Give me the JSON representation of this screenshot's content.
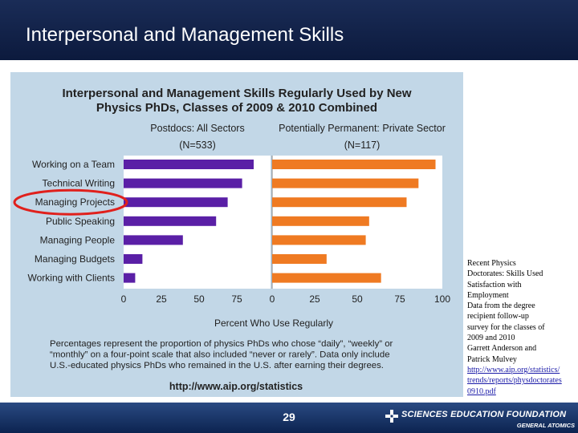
{
  "header": {
    "title": "Interpersonal and Management Skills"
  },
  "chart_data": {
    "type": "bar",
    "orientation": "horizontal",
    "title": "Interpersonal and Management Skills Regularly Used by New Physics PhDs, Classes of 2009 & 2010 Combined",
    "title_lines": [
      "Interpersonal and Management Skills Regularly Used by New",
      "Physics PhDs, Classes of 2009 & 2010 Combined"
    ],
    "categories": [
      "Working on a Team",
      "Technical Writing",
      "Managing Projects",
      "Public Speaking",
      "Managing People",
      "Managing Budgets",
      "Working with Clients"
    ],
    "highlighted_category": "Managing Projects",
    "series": [
      {
        "name": "Postdocs: All Sectors",
        "n_label": "(N=533)",
        "color": "#5a1fa6",
        "values": [
          90,
          82,
          72,
          64,
          41,
          13,
          8
        ]
      },
      {
        "name": "Potentially Permanent: Private Sector",
        "n_label": "(N=117)",
        "color": "#ef7a22",
        "values": [
          96,
          86,
          79,
          57,
          55,
          32,
          64
        ]
      }
    ],
    "ticks_left": [
      "0",
      "25",
      "50",
      "75"
    ],
    "ticks_right": [
      "0",
      "25",
      "50",
      "75",
      "100"
    ],
    "xlim": [
      0,
      100
    ],
    "xlabel": "Percent Who Use Regularly",
    "note_lines": [
      "Percentages represent the proportion of physics PhDs who chose “daily”, “weekly” or",
      "“monthly” on a four-point scale that also included “never or rarely”.  Data only include",
      "U.S.-educated physics PhDs who remained in the U.S. after earning their degrees."
    ],
    "url": "http://www.aip.org/statistics"
  },
  "side_note": {
    "lines": [
      "Recent Physics",
      "Doctorates:  Skills Used",
      "Satisfaction with",
      "Employment",
      "Data from the degree",
      "recipient follow-up",
      "survey for the classes of",
      "2009 and 2010",
      "Garrett Anderson and",
      "Patrick Mulvey"
    ],
    "link": "http://www.aip.org/statistics/trends/reports/physdoctorates0910.pdf"
  },
  "footer": {
    "page_number": "29",
    "logo_text": "SCIENCES EDUCATION FOUNDATION",
    "logo_subtext": "GENERAL ATOMICS"
  },
  "colors": {
    "header_bg": "#13234b",
    "chart_bg": "#c2d7e7",
    "postdoc_bar": "#5a1fa6",
    "private_bar": "#ef7a22",
    "highlight_circle": "#e0201c",
    "footer_bg": "#1a376c"
  }
}
